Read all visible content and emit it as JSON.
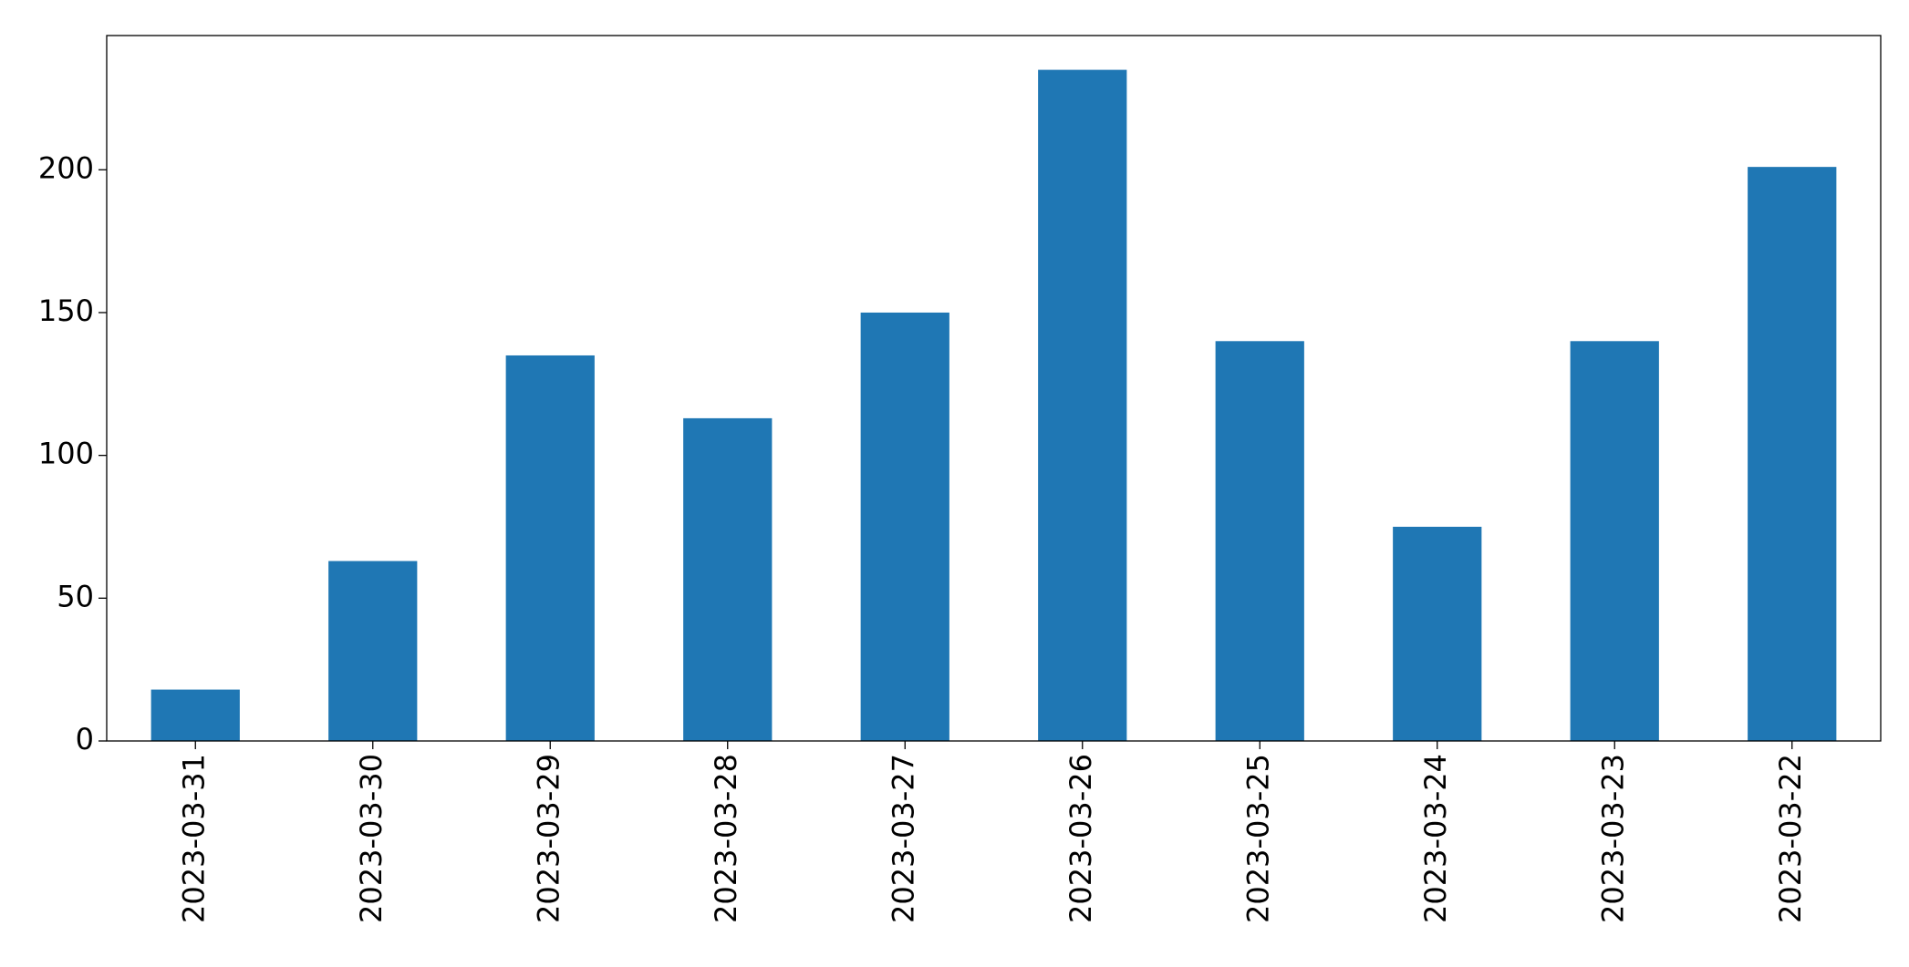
{
  "chart_data": {
    "type": "bar",
    "categories": [
      "2023-03-31",
      "2023-03-30",
      "2023-03-29",
      "2023-03-28",
      "2023-03-27",
      "2023-03-26",
      "2023-03-25",
      "2023-03-24",
      "2023-03-23",
      "2023-03-22"
    ],
    "values": [
      18,
      63,
      135,
      113,
      150,
      235,
      140,
      75,
      140,
      201
    ],
    "color": "#1f77b4",
    "ylim": [
      0,
      247
    ],
    "yticks": [
      0,
      50,
      100,
      150,
      200
    ],
    "grid": false
  }
}
